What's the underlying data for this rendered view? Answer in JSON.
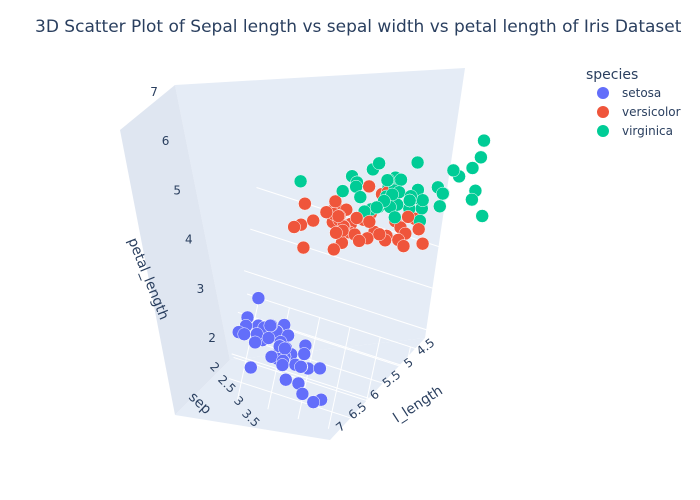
{
  "chart_data": {
    "type": "scatter",
    "title": "3D Scatter Plot of Sepal length vs sepal width vs petal length of Iris Dataset",
    "axes": {
      "x": {
        "label": "sepal_length",
        "visible_label": "l_length",
        "ticks": [
          "4.5",
          "5",
          "5.5",
          "6",
          "6.5",
          "7"
        ],
        "range": [
          4.3,
          7.9
        ]
      },
      "y": {
        "label": "sepal_width",
        "visible_label": "sep",
        "ticks": [
          "2",
          "2.5",
          "3",
          "3.5"
        ],
        "range": [
          2.0,
          4.4
        ]
      },
      "z": {
        "label": "petal_length",
        "ticks": [
          "2",
          "3",
          "4",
          "5",
          "6",
          "7"
        ],
        "range": [
          1.0,
          6.9
        ]
      }
    },
    "legend": {
      "title": "species",
      "placement": "top-right"
    },
    "series": [
      {
        "name": "setosa",
        "color": "#636efa",
        "points": [
          [
            5.1,
            3.5,
            1.4
          ],
          [
            4.9,
            3.0,
            1.4
          ],
          [
            4.7,
            3.2,
            1.3
          ],
          [
            4.6,
            3.1,
            1.5
          ],
          [
            5.0,
            3.6,
            1.4
          ],
          [
            5.4,
            3.9,
            1.7
          ],
          [
            4.6,
            3.4,
            1.4
          ],
          [
            5.0,
            3.4,
            1.5
          ],
          [
            4.4,
            2.9,
            1.4
          ],
          [
            4.9,
            3.1,
            1.5
          ],
          [
            5.4,
            3.7,
            1.5
          ],
          [
            4.8,
            3.4,
            1.6
          ],
          [
            4.8,
            3.0,
            1.4
          ],
          [
            4.3,
            3.0,
            1.1
          ],
          [
            5.8,
            4.0,
            1.2
          ],
          [
            5.7,
            4.4,
            1.5
          ],
          [
            5.4,
            3.9,
            1.3
          ],
          [
            5.1,
            3.5,
            1.4
          ],
          [
            5.7,
            3.8,
            1.7
          ],
          [
            5.1,
            3.8,
            1.5
          ],
          [
            5.4,
            3.4,
            1.7
          ],
          [
            5.1,
            3.7,
            1.5
          ],
          [
            4.6,
            3.6,
            1.0
          ],
          [
            5.1,
            3.3,
            1.7
          ],
          [
            4.8,
            3.4,
            1.9
          ],
          [
            5.0,
            3.0,
            1.6
          ],
          [
            5.0,
            3.4,
            1.6
          ],
          [
            5.2,
            3.5,
            1.5
          ],
          [
            5.2,
            3.4,
            1.4
          ],
          [
            4.7,
            3.2,
            1.6
          ],
          [
            4.8,
            3.1,
            1.6
          ],
          [
            5.4,
            3.4,
            1.5
          ],
          [
            5.2,
            4.1,
            1.5
          ],
          [
            5.5,
            4.2,
            1.4
          ],
          [
            4.9,
            3.1,
            1.5
          ],
          [
            5.0,
            3.2,
            1.2
          ],
          [
            5.5,
            3.5,
            1.3
          ],
          [
            4.9,
            3.6,
            1.4
          ],
          [
            4.4,
            3.0,
            1.3
          ],
          [
            5.1,
            3.4,
            1.5
          ],
          [
            5.0,
            3.5,
            1.3
          ],
          [
            4.5,
            2.3,
            1.3
          ],
          [
            4.4,
            3.2,
            1.3
          ],
          [
            5.0,
            3.5,
            1.6
          ],
          [
            5.1,
            3.8,
            1.9
          ],
          [
            4.8,
            3.0,
            1.4
          ],
          [
            5.1,
            3.8,
            1.6
          ],
          [
            4.6,
            3.2,
            1.4
          ],
          [
            5.3,
            3.7,
            1.5
          ],
          [
            5.0,
            3.3,
            1.4
          ]
        ]
      },
      {
        "name": "versicolor",
        "color": "#ef553b",
        "points": [
          [
            7.0,
            3.2,
            4.7
          ],
          [
            6.4,
            3.2,
            4.5
          ],
          [
            6.9,
            3.1,
            4.9
          ],
          [
            5.5,
            2.3,
            4.0
          ],
          [
            6.5,
            2.8,
            4.6
          ],
          [
            5.7,
            2.8,
            4.5
          ],
          [
            6.3,
            3.3,
            4.7
          ],
          [
            4.9,
            2.4,
            3.3
          ],
          [
            6.6,
            2.9,
            4.6
          ],
          [
            5.2,
            2.7,
            3.9
          ],
          [
            5.0,
            2.0,
            3.5
          ],
          [
            5.9,
            3.0,
            4.2
          ],
          [
            6.0,
            2.2,
            4.0
          ],
          [
            6.1,
            2.9,
            4.7
          ],
          [
            5.6,
            2.9,
            3.6
          ],
          [
            6.7,
            3.1,
            4.4
          ],
          [
            5.6,
            3.0,
            4.5
          ],
          [
            5.8,
            2.7,
            4.1
          ],
          [
            6.2,
            2.2,
            4.5
          ],
          [
            5.6,
            2.5,
            3.9
          ],
          [
            5.9,
            3.2,
            4.8
          ],
          [
            6.1,
            2.8,
            4.0
          ],
          [
            6.3,
            2.5,
            4.9
          ],
          [
            6.1,
            2.8,
            4.7
          ],
          [
            6.4,
            2.9,
            4.3
          ],
          [
            6.6,
            3.0,
            4.4
          ],
          [
            6.8,
            2.8,
            4.8
          ],
          [
            6.7,
            3.0,
            5.0
          ],
          [
            6.0,
            2.9,
            4.5
          ],
          [
            5.7,
            2.6,
            3.5
          ],
          [
            5.5,
            2.4,
            3.8
          ],
          [
            5.5,
            2.4,
            3.7
          ],
          [
            5.8,
            2.7,
            3.9
          ],
          [
            6.0,
            2.7,
            5.1
          ],
          [
            5.4,
            3.0,
            4.5
          ],
          [
            6.0,
            3.4,
            4.5
          ],
          [
            6.7,
            3.1,
            4.7
          ],
          [
            6.3,
            2.3,
            4.4
          ],
          [
            5.6,
            3.0,
            4.1
          ],
          [
            5.5,
            2.5,
            4.0
          ],
          [
            5.5,
            2.6,
            4.4
          ],
          [
            6.1,
            3.0,
            4.6
          ],
          [
            5.8,
            2.6,
            4.0
          ],
          [
            5.0,
            2.3,
            3.3
          ],
          [
            5.6,
            2.7,
            4.2
          ],
          [
            5.7,
            3.0,
            4.2
          ],
          [
            5.7,
            2.9,
            4.2
          ],
          [
            6.2,
            2.9,
            4.3
          ],
          [
            5.1,
            2.5,
            3.0
          ],
          [
            5.7,
            2.8,
            4.1
          ]
        ]
      },
      {
        "name": "virginica",
        "color": "#00cc96",
        "points": [
          [
            6.3,
            3.3,
            6.0
          ],
          [
            5.8,
            2.7,
            5.1
          ],
          [
            7.1,
            3.0,
            5.9
          ],
          [
            6.3,
            2.9,
            5.6
          ],
          [
            6.5,
            3.0,
            5.8
          ],
          [
            7.6,
            3.0,
            6.6
          ],
          [
            4.9,
            2.5,
            4.5
          ],
          [
            7.3,
            2.9,
            6.3
          ],
          [
            6.7,
            2.5,
            5.8
          ],
          [
            7.2,
            3.6,
            6.1
          ],
          [
            6.5,
            3.2,
            5.1
          ],
          [
            6.4,
            2.7,
            5.3
          ],
          [
            6.8,
            3.0,
            5.5
          ],
          [
            5.7,
            2.5,
            5.0
          ],
          [
            5.8,
            2.8,
            5.1
          ],
          [
            6.4,
            3.2,
            5.3
          ],
          [
            6.5,
            3.0,
            5.5
          ],
          [
            7.7,
            3.8,
            6.7
          ],
          [
            7.7,
            2.6,
            6.9
          ],
          [
            6.0,
            2.2,
            5.0
          ],
          [
            6.9,
            3.2,
            5.7
          ],
          [
            5.6,
            2.8,
            4.9
          ],
          [
            7.7,
            2.8,
            6.7
          ],
          [
            6.3,
            2.7,
            4.9
          ],
          [
            6.7,
            3.3,
            5.7
          ],
          [
            7.2,
            3.2,
            6.0
          ],
          [
            6.2,
            2.8,
            4.8
          ],
          [
            6.1,
            3.0,
            4.9
          ],
          [
            6.4,
            2.8,
            5.6
          ],
          [
            7.2,
            3.0,
            5.8
          ],
          [
            7.4,
            2.8,
            6.1
          ],
          [
            7.9,
            3.8,
            6.4
          ],
          [
            6.4,
            2.8,
            5.6
          ],
          [
            6.3,
            2.8,
            5.1
          ],
          [
            6.1,
            2.6,
            5.6
          ],
          [
            7.7,
            3.0,
            6.1
          ],
          [
            6.3,
            3.4,
            5.6
          ],
          [
            6.4,
            3.1,
            5.5
          ],
          [
            6.0,
            3.0,
            4.8
          ],
          [
            6.9,
            3.1,
            5.4
          ],
          [
            6.7,
            3.1,
            5.6
          ],
          [
            6.9,
            3.1,
            5.1
          ],
          [
            5.8,
            2.7,
            5.1
          ],
          [
            6.8,
            3.2,
            5.9
          ],
          [
            6.7,
            3.3,
            5.7
          ],
          [
            6.7,
            3.0,
            5.2
          ],
          [
            6.3,
            2.5,
            5.0
          ],
          [
            6.5,
            3.0,
            5.2
          ],
          [
            6.2,
            3.4,
            5.4
          ],
          [
            5.9,
            3.0,
            5.1
          ]
        ]
      }
    ],
    "grid": true,
    "background": "#e5ecf6"
  }
}
